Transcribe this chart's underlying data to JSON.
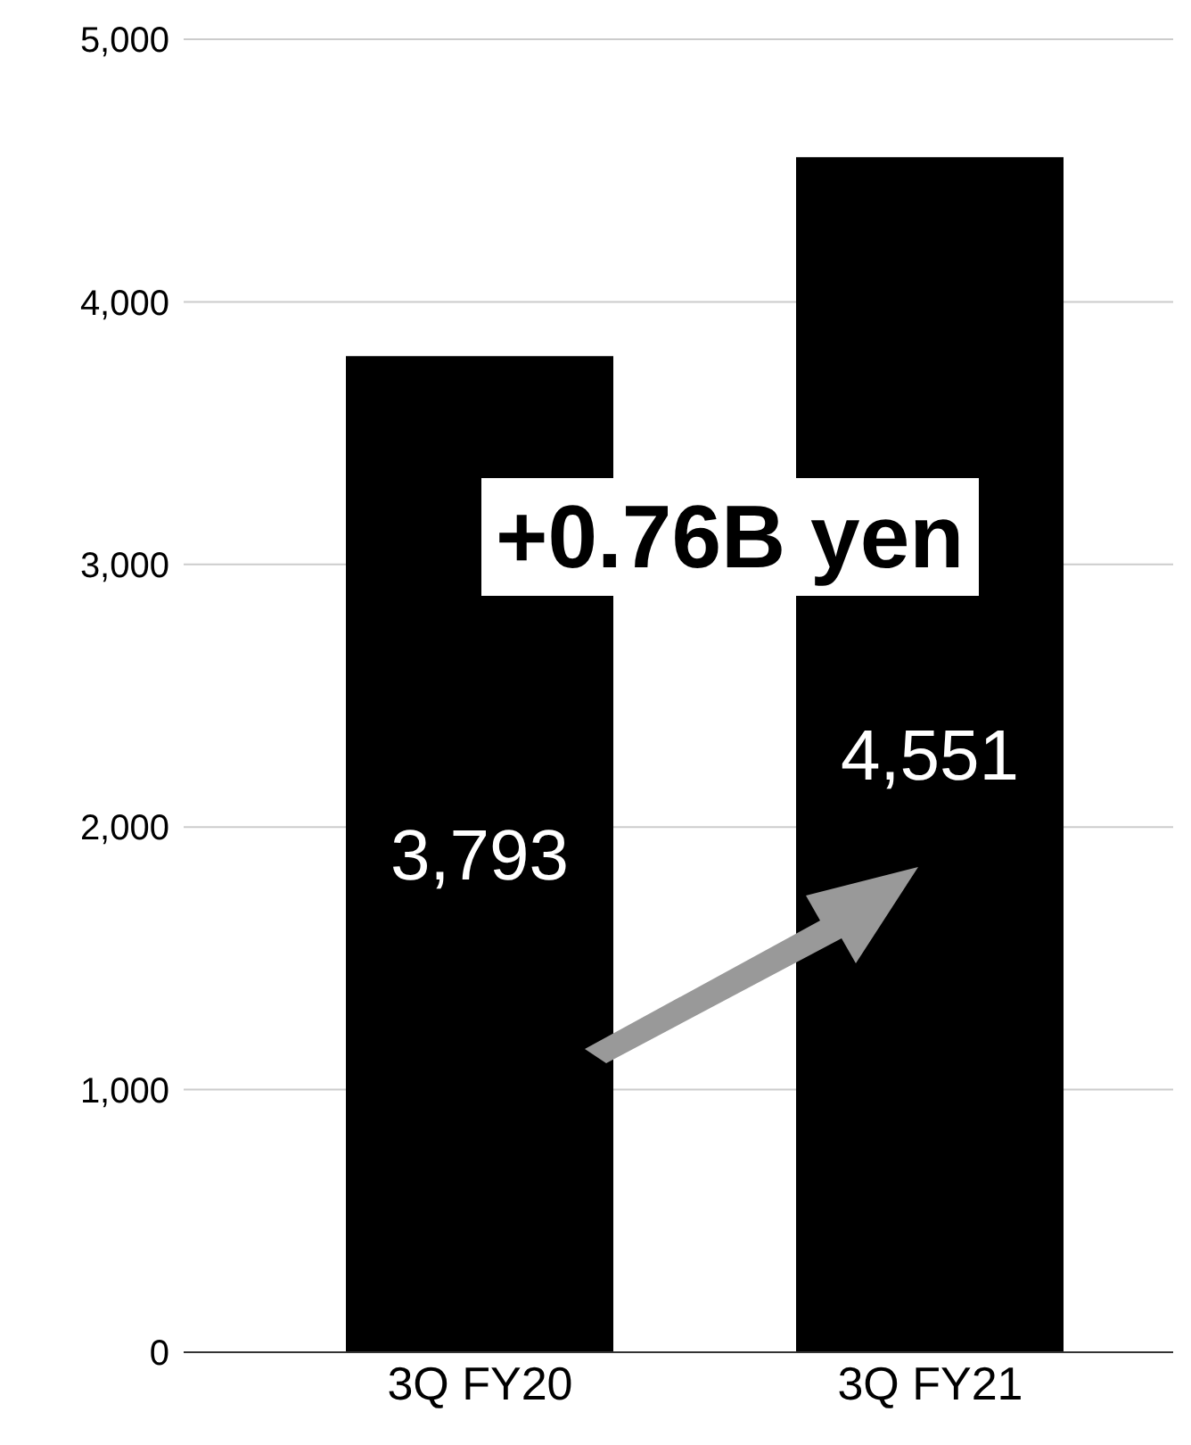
{
  "chart_data": {
    "type": "bar",
    "categories": [
      "3Q FY20",
      "3Q FY21"
    ],
    "values": [
      3793,
      4551
    ],
    "color": "#000000",
    "value_labels": [
      "3,793",
      "4,551"
    ],
    "ylim": [
      0,
      5000
    ],
    "yticks": [
      0,
      {
        "value": 1000,
        "label": "1,000"
      },
      {
        "value": 2000,
        "label": "2,000"
      },
      {
        "value": 3000,
        "label": "3,000"
      },
      {
        "value": 4000,
        "label": "4,000"
      },
      {
        "value": 5000,
        "label": "5,000"
      }
    ],
    "grid": "y",
    "annotations": [
      "+0.76B yen"
    ]
  }
}
